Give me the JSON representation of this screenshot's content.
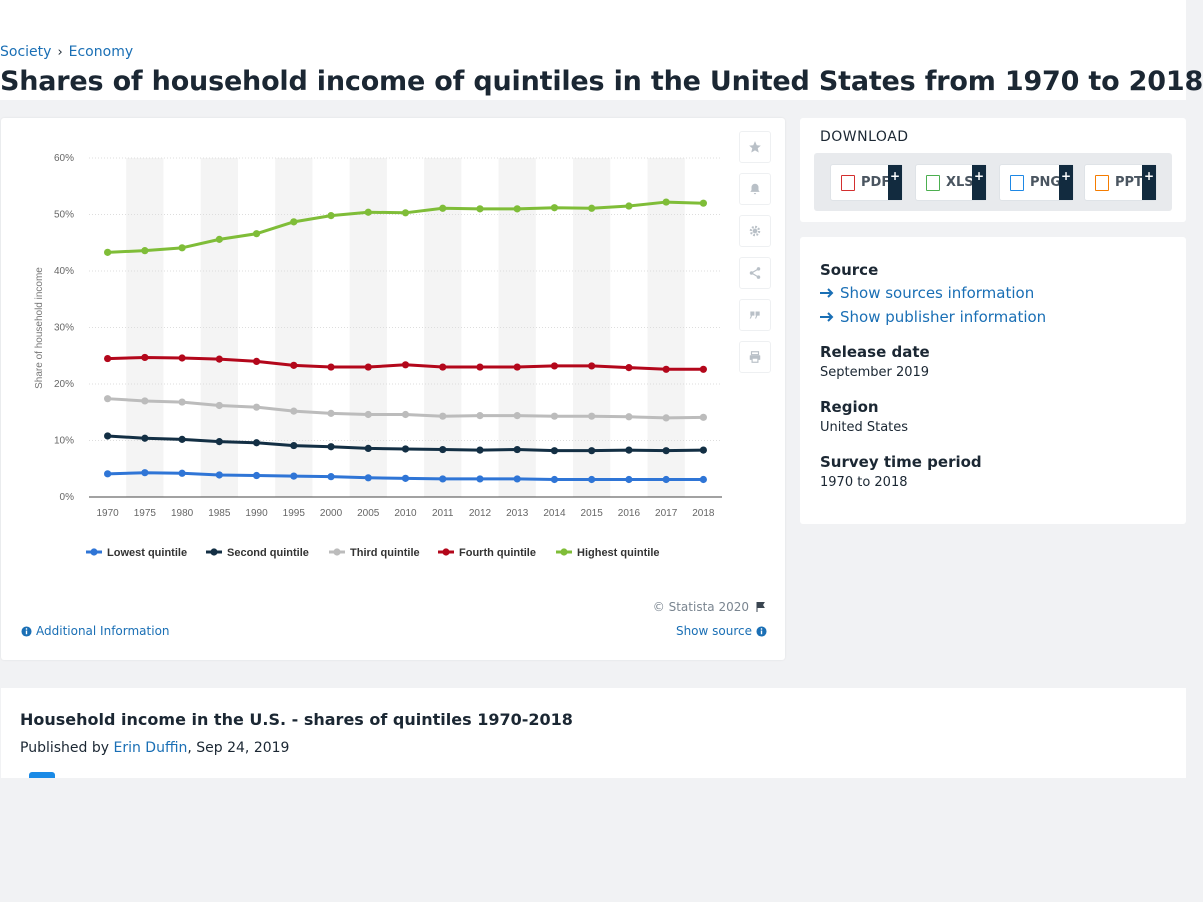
{
  "breadcrumb": {
    "items": [
      "Society",
      "Economy"
    ],
    "separator": "›"
  },
  "page_title": "Shares of household income of quintiles in the United States from 1970 to 2018",
  "chart_data": {
    "type": "line",
    "title": "",
    "xlabel": "",
    "ylabel": "Share of household income",
    "categories": [
      "1970",
      "1975",
      "1980",
      "1985",
      "1990",
      "1995",
      "2000",
      "2005",
      "2010",
      "2011",
      "2012",
      "2013",
      "2014",
      "2015",
      "2016",
      "2017",
      "2018"
    ],
    "ylim": [
      0,
      60
    ],
    "yticks": [
      "0%",
      "10%",
      "20%",
      "30%",
      "40%",
      "50%",
      "60%"
    ],
    "ytick_values": [
      0,
      10,
      20,
      30,
      40,
      50,
      60
    ],
    "grid": true,
    "legend_position": "bottom",
    "series": [
      {
        "name": "Lowest quintile",
        "color": "#2f75d6",
        "values": [
          4.1,
          4.3,
          4.2,
          3.9,
          3.8,
          3.7,
          3.6,
          3.4,
          3.3,
          3.2,
          3.2,
          3.2,
          3.1,
          3.1,
          3.1,
          3.1,
          3.1
        ]
      },
      {
        "name": "Second quintile",
        "color": "#132f44",
        "values": [
          10.8,
          10.4,
          10.2,
          9.8,
          9.6,
          9.1,
          8.9,
          8.6,
          8.5,
          8.4,
          8.3,
          8.4,
          8.2,
          8.2,
          8.3,
          8.2,
          8.3
        ]
      },
      {
        "name": "Third quintile",
        "color": "#bcbcbc",
        "values": [
          17.4,
          17.0,
          16.8,
          16.2,
          15.9,
          15.2,
          14.8,
          14.6,
          14.6,
          14.3,
          14.4,
          14.4,
          14.3,
          14.3,
          14.2,
          14.0,
          14.1
        ]
      },
      {
        "name": "Fourth quintile",
        "color": "#b3071b",
        "values": [
          24.5,
          24.7,
          24.6,
          24.4,
          24.0,
          23.3,
          23.0,
          23.0,
          23.4,
          23.0,
          23.0,
          23.0,
          23.2,
          23.2,
          22.9,
          22.6,
          22.6
        ]
      },
      {
        "name": "Highest quintile",
        "color": "#7fbd38",
        "values": [
          43.3,
          43.6,
          44.1,
          45.6,
          46.6,
          48.7,
          49.8,
          50.4,
          50.3,
          51.1,
          51.0,
          51.0,
          51.2,
          51.1,
          51.5,
          52.2,
          52.0
        ]
      }
    ]
  },
  "chart_footer": {
    "copyright": "© Statista 2020",
    "additional_info": "Additional Information",
    "show_source": "Show source"
  },
  "colors": {
    "link": "#1a6fb5",
    "band": "#f4f4f4",
    "grid": "#dddddd"
  },
  "download": {
    "title": "DOWNLOAD",
    "buttons": [
      {
        "label": "PDF",
        "icon": "pdf-file-icon",
        "color": "#d32f2f"
      },
      {
        "label": "XLS",
        "icon": "xls-file-icon",
        "color": "#4caf50"
      },
      {
        "label": "PNG",
        "icon": "png-file-icon",
        "color": "#1e88e5"
      },
      {
        "label": "PPT",
        "icon": "ppt-file-icon",
        "color": "#f57c00"
      }
    ],
    "plus": "+"
  },
  "info": {
    "source_label": "Source",
    "show_sources": "Show sources information",
    "show_publisher": "Show publisher information",
    "release_label": "Release date",
    "release_value": "September 2019",
    "region_label": "Region",
    "region_value": "United States",
    "period_label": "Survey time period",
    "period_value": "1970 to 2018"
  },
  "description": {
    "title": "Household income in the U.S. - shares of quintiles 1970-2018",
    "published_prefix": "Published by ",
    "author": "Erin Duffin",
    "date": ", Sep 24, 2019"
  }
}
